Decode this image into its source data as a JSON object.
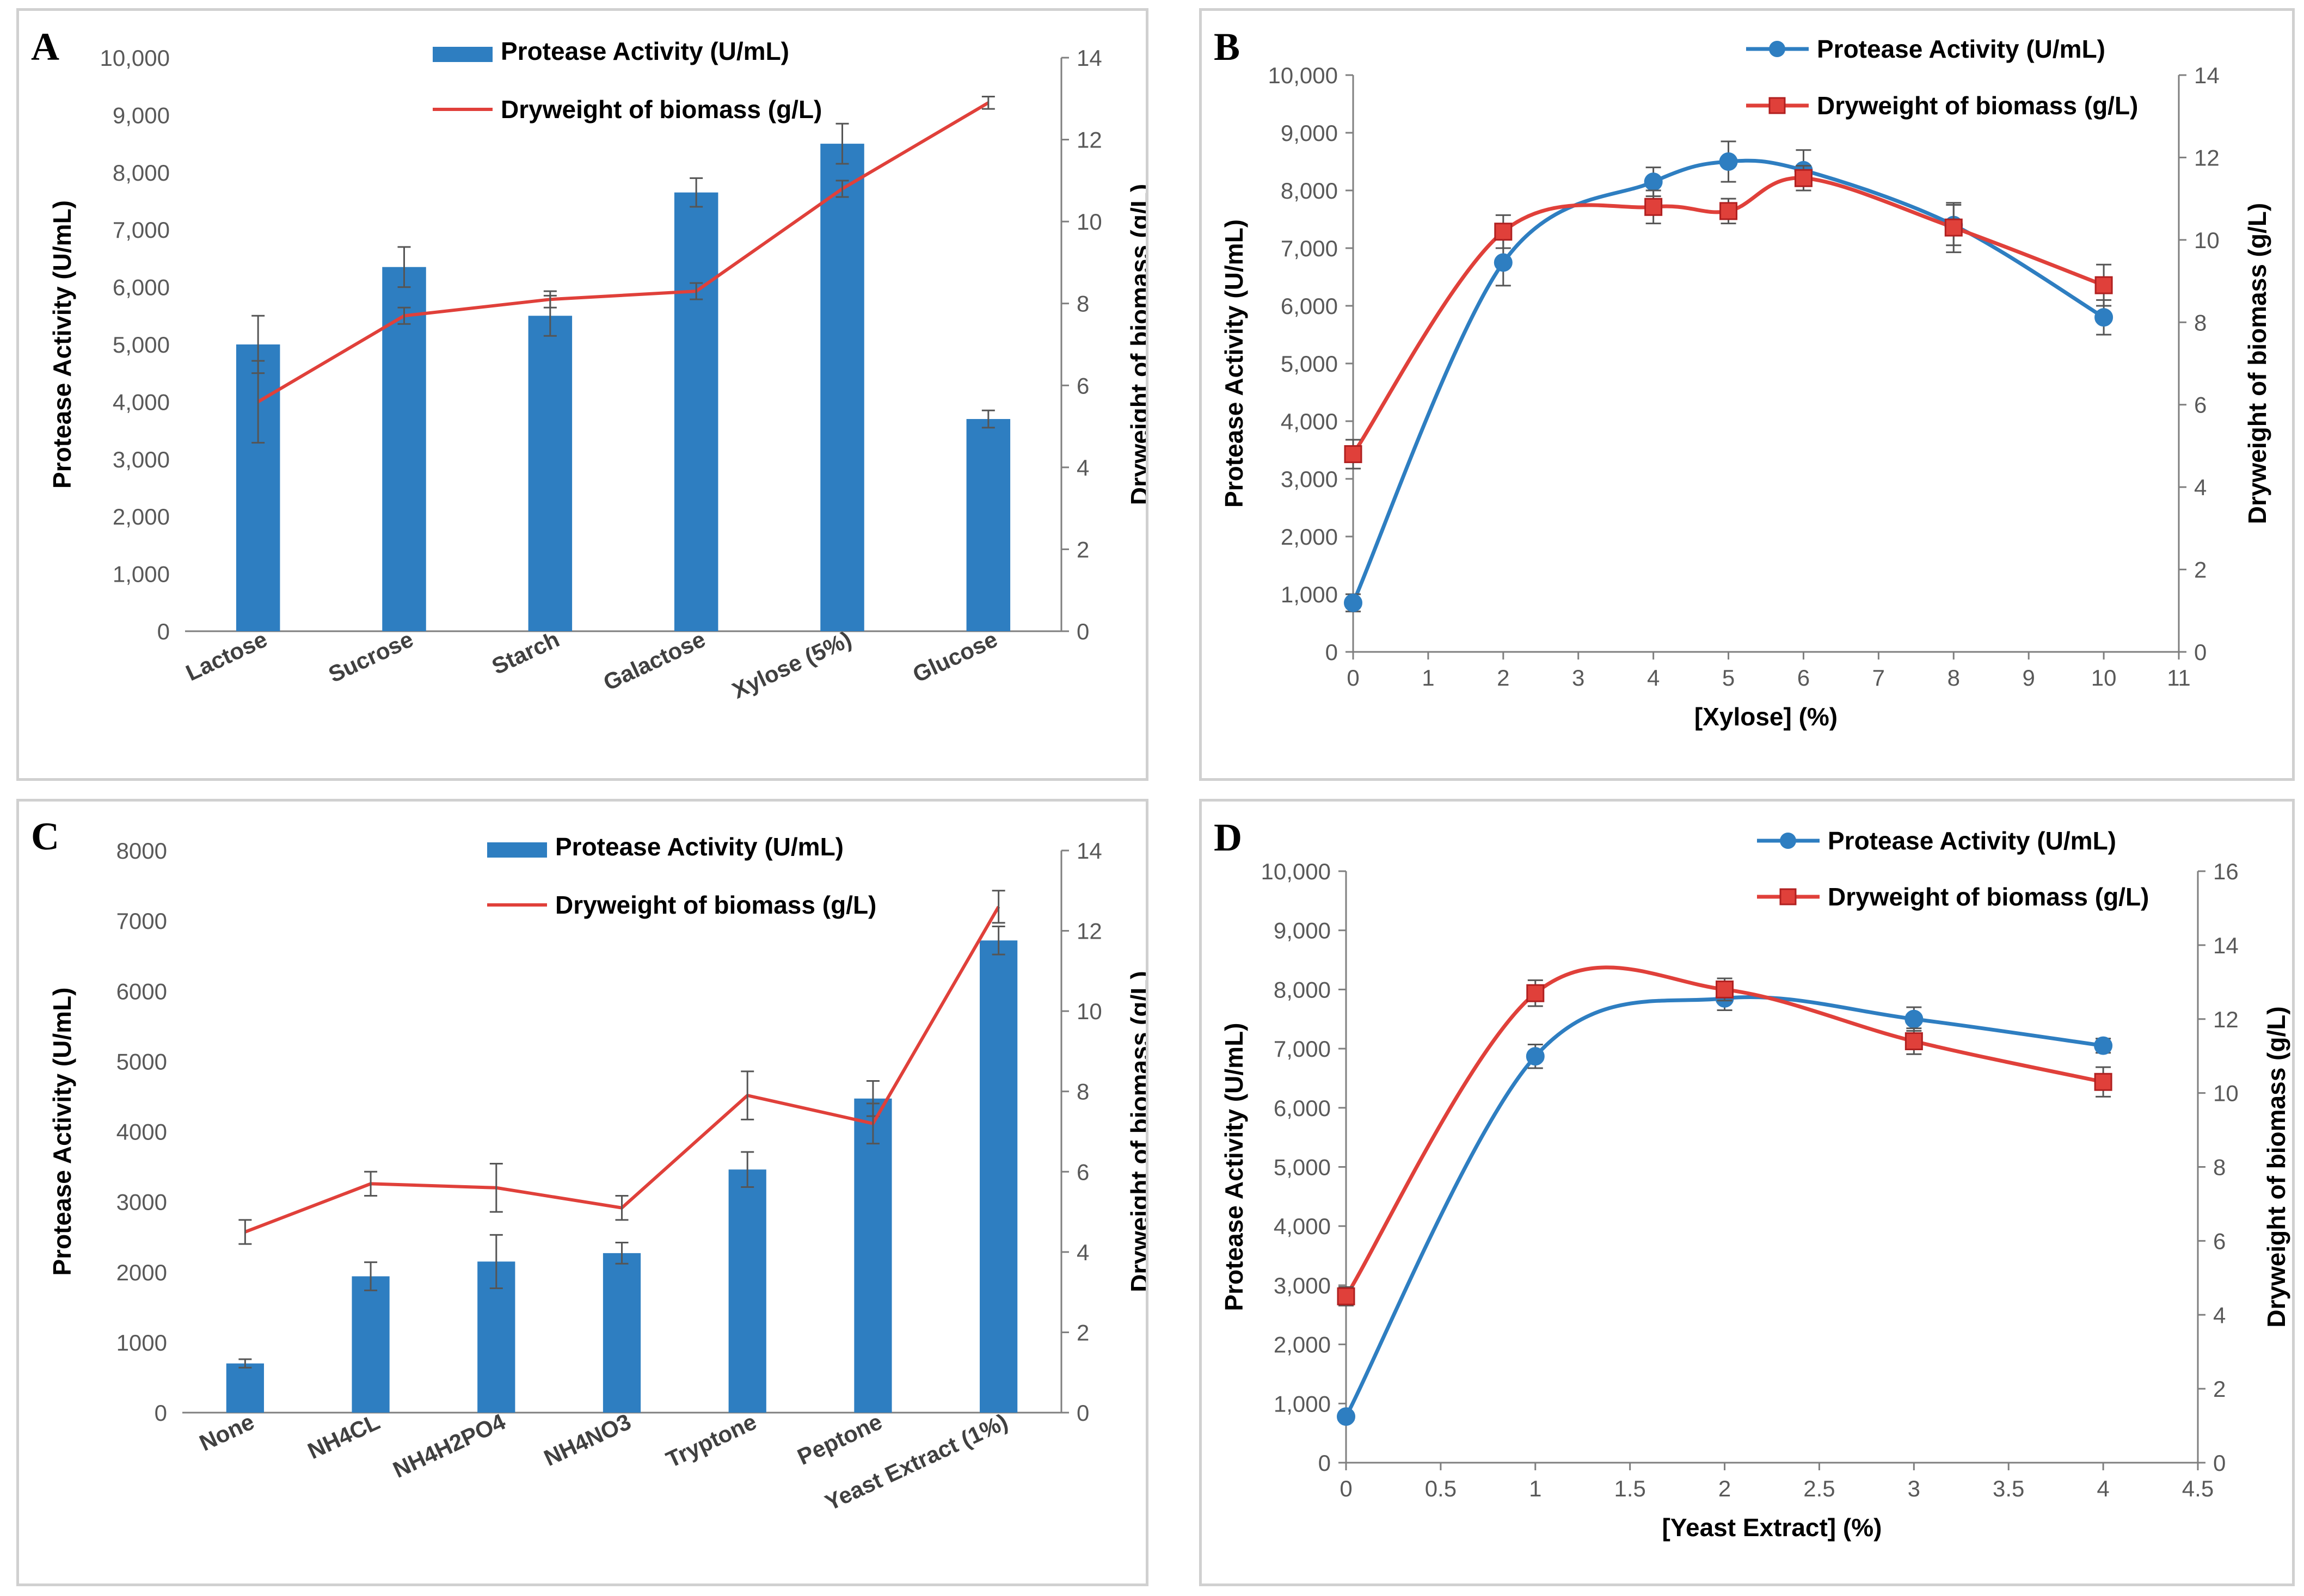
{
  "colors": {
    "blue": "#2E7EC1",
    "red": "#E0403A",
    "axis": "#7f7f7f",
    "error": "#555555"
  },
  "chart_data": [
    {
      "id": "A",
      "type": "bar",
      "panel_label": "A",
      "categories": [
        "Lactose",
        "Sucrose",
        "Starch",
        "Galactose",
        "Xylose (5%)",
        "Glucose"
      ],
      "series": [
        {
          "name": "Protease Activity (U/mL)",
          "kind": "bar",
          "axis": "left",
          "values": [
            5000,
            6350,
            5500,
            7650,
            8500,
            3700
          ],
          "errors": [
            500,
            350,
            350,
            250,
            350,
            150
          ]
        },
        {
          "name": "Dryweight of biomass (g/L)",
          "kind": "line",
          "axis": "right",
          "values": [
            5.6,
            7.7,
            8.1,
            8.3,
            10.8,
            12.9
          ],
          "errors": [
            1.0,
            0.2,
            0.2,
            0.2,
            0.2,
            0.15
          ]
        }
      ],
      "ylabel": "Protease Activity (U/mL)",
      "y2label": "Dryweight of biomass (g/L)",
      "ylim": [
        0,
        10000
      ],
      "yticks": [
        0,
        1000,
        2000,
        3000,
        4000,
        5000,
        6000,
        7000,
        8000,
        9000,
        10000
      ],
      "yticklabels": [
        "0",
        "1,000",
        "2,000",
        "3,000",
        "4,000",
        "5,000",
        "6,000",
        "7,000",
        "8,000",
        "9,000",
        "10,000"
      ],
      "y2lim": [
        0,
        14
      ],
      "y2ticks": [
        0,
        2,
        4,
        6,
        8,
        10,
        12,
        14
      ],
      "y2ticklabels": [
        "0",
        "2",
        "4",
        "6",
        "8",
        "10",
        "12",
        "14"
      ],
      "legend": "top-center"
    },
    {
      "id": "B",
      "type": "line",
      "panel_label": "B",
      "x": [
        0,
        2,
        4,
        5,
        6,
        8,
        10
      ],
      "series": [
        {
          "name": "Protease Activity (U/mL)",
          "axis": "left",
          "marker": "circle",
          "values": [
            850,
            6750,
            8150,
            8500,
            8350,
            7400,
            5800
          ],
          "errors": [
            150,
            400,
            250,
            350,
            350,
            350,
            300
          ]
        },
        {
          "name": "Dryweight of biomass (g/L)",
          "axis": "right",
          "marker": "square",
          "values": [
            4.8,
            10.2,
            10.8,
            10.7,
            11.5,
            10.3,
            8.9
          ],
          "errors": [
            0.35,
            0.4,
            0.4,
            0.3,
            0.3,
            0.6,
            0.5
          ]
        }
      ],
      "xlabel": "[Xylose] (%)",
      "ylabel": "Protease Activity (U/mL)",
      "y2label": "Dryweight of biomass (g/L)",
      "xlim": [
        0,
        11
      ],
      "xticks": [
        0,
        1,
        2,
        3,
        4,
        5,
        6,
        7,
        8,
        9,
        10,
        11
      ],
      "xticklabels": [
        "0",
        "1",
        "2",
        "3",
        "4",
        "5",
        "6",
        "7",
        "8",
        "9",
        "10",
        "11"
      ],
      "ylim": [
        0,
        10000
      ],
      "yticks": [
        0,
        1000,
        2000,
        3000,
        4000,
        5000,
        6000,
        7000,
        8000,
        9000,
        10000
      ],
      "yticklabels": [
        "0",
        "1,000",
        "2,000",
        "3,000",
        "4,000",
        "5,000",
        "6,000",
        "7,000",
        "8,000",
        "9,000",
        "10,000"
      ],
      "y2lim": [
        0,
        14
      ],
      "y2ticks": [
        0,
        2,
        4,
        6,
        8,
        10,
        12,
        14
      ],
      "y2ticklabels": [
        "0",
        "2",
        "4",
        "6",
        "8",
        "10",
        "12",
        "14"
      ],
      "legend": "top-right"
    },
    {
      "id": "C",
      "type": "bar",
      "panel_label": "C",
      "categories": [
        "None",
        "NH4CL",
        "NH4H2PO4",
        "NH4NO3",
        "Tryptone",
        "Peptone",
        "Yeast Extract (1%)"
      ],
      "series": [
        {
          "name": "Protease Activity (U/mL)",
          "kind": "bar",
          "axis": "left",
          "values": [
            700,
            1940,
            2150,
            2270,
            3460,
            4470,
            6720
          ],
          "errors": [
            60,
            200,
            380,
            150,
            250,
            250,
            200
          ]
        },
        {
          "name": "Dryweight of biomass (g/L)",
          "kind": "line",
          "axis": "right",
          "values": [
            4.5,
            5.7,
            5.6,
            5.1,
            7.9,
            7.2,
            12.6
          ],
          "errors": [
            0.3,
            0.3,
            0.6,
            0.3,
            0.6,
            0.5,
            0.4
          ]
        }
      ],
      "ylabel": "Protease Activity (U/mL)",
      "y2label": "Dryweight of biomass (g/L)",
      "ylim": [
        0,
        8000
      ],
      "yticks": [
        0,
        1000,
        2000,
        3000,
        4000,
        5000,
        6000,
        7000,
        8000
      ],
      "yticklabels": [
        "0",
        "1000",
        "2000",
        "3000",
        "4000",
        "5000",
        "6000",
        "7000",
        "8000"
      ],
      "y2lim": [
        0,
        14
      ],
      "y2ticks": [
        0,
        2,
        4,
        6,
        8,
        10,
        12,
        14
      ],
      "y2ticklabels": [
        "0",
        "2",
        "4",
        "6",
        "8",
        "10",
        "12",
        "14"
      ],
      "legend": "top-center"
    },
    {
      "id": "D",
      "type": "line",
      "panel_label": "D",
      "x": [
        0,
        1,
        2,
        3,
        4
      ],
      "series": [
        {
          "name": "Protease Activity (U/mL)",
          "axis": "left",
          "marker": "circle",
          "values": [
            780,
            6870,
            7850,
            7500,
            7050
          ],
          "errors": [
            60,
            200,
            200,
            200,
            120
          ]
        },
        {
          "name": "Dryweight of biomass (g/L)",
          "axis": "right",
          "marker": "square",
          "values": [
            4.5,
            12.7,
            12.8,
            11.4,
            10.3
          ],
          "errors": [
            0.25,
            0.35,
            0.3,
            0.35,
            0.4
          ]
        }
      ],
      "xlabel": "[Yeast Extract] (%)",
      "ylabel": "Protease Activity (U/mL)",
      "y2label": "Dryweight of biomass (g/L)",
      "xlim": [
        0,
        4.5
      ],
      "xticks": [
        0,
        0.5,
        1,
        1.5,
        2,
        2.5,
        3,
        3.5,
        4,
        4.5
      ],
      "xticklabels": [
        "0",
        "0.5",
        "1",
        "1.5",
        "2",
        "2.5",
        "3",
        "3.5",
        "4",
        "4.5"
      ],
      "ylim": [
        0,
        10000
      ],
      "yticks": [
        0,
        1000,
        2000,
        3000,
        4000,
        5000,
        6000,
        7000,
        8000,
        9000,
        10000
      ],
      "yticklabels": [
        "0",
        "1,000",
        "2,000",
        "3,000",
        "4,000",
        "5,000",
        "6,000",
        "7,000",
        "8,000",
        "9,000",
        "10,000"
      ],
      "y2lim": [
        0,
        16
      ],
      "y2ticks": [
        0,
        2,
        4,
        6,
        8,
        10,
        12,
        14,
        16
      ],
      "y2ticklabels": [
        "0",
        "2",
        "4",
        "6",
        "8",
        "10",
        "12",
        "14",
        "16"
      ],
      "legend": "top-right"
    }
  ]
}
